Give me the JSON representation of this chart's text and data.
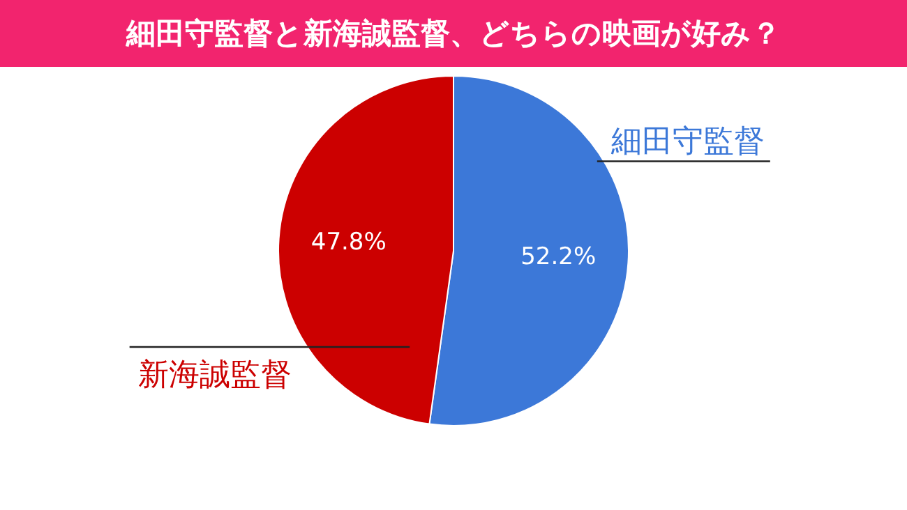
{
  "chart_data": {
    "type": "pie",
    "title": "細田守監督と新海誠監督、どちらの映画が好み？",
    "categories": [
      "細田守監督",
      "新海誠監督"
    ],
    "values": [
      52.2,
      47.8
    ],
    "colors": [
      "#3c78d8",
      "#cc0000"
    ],
    "value_labels": [
      "52.2%",
      "47.8%"
    ],
    "legend": false
  }
}
